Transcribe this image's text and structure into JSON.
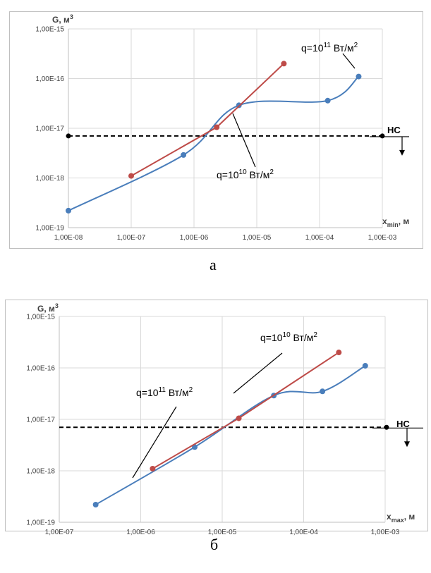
{
  "charts": [
    {
      "caption": "а",
      "chart_data": {
        "type": "scatter",
        "scale": {
          "x": "log",
          "y": "log"
        },
        "xlim": [
          1e-08,
          0.001
        ],
        "ylim": [
          1e-19,
          1e-15
        ],
        "grid": true,
        "xlabel": {
          "main": "x",
          "sub": "min",
          "rest": ", м"
        },
        "ylabel": {
          "main": "G, м",
          "sup": "3"
        },
        "xticks": [
          "1,00E-08",
          "1,00E-07",
          "1,00E-06",
          "1,00E-05",
          "1,00E-04",
          "1,00E-03"
        ],
        "yticks": [
          "1,00E-19",
          "1,00E-18",
          "1,00E-17",
          "1,00E-16",
          "1,00E-15"
        ],
        "series": [
          {
            "color": "#4a7ebb",
            "smooth": true,
            "points": [
              [
                1e-08,
                2.2e-19
              ],
              [
                6.8e-07,
                2.9e-18
              ],
              [
                5.2e-06,
                2.9e-17
              ],
              [
                0.000135,
                3.6e-17
              ],
              [
                0.00042,
                1.1e-16
              ]
            ]
          },
          {
            "color": "#be4b48",
            "smooth": false,
            "points": [
              [
                1e-07,
                1.1e-18
              ],
              [
                2.3e-06,
                1.05e-17
              ],
              [
                2.7e-05,
                2e-16
              ]
            ]
          }
        ],
        "threshold": {
          "y": 7e-18,
          "label": "НС",
          "color": "#000000"
        },
        "annotations": [
          {
            "prefix": "q=10",
            "exp": "11",
            "suffix": " Вт/м",
            "sup2": "2"
          },
          {
            "prefix": "q=10",
            "exp": "10",
            "suffix": " Вт/м",
            "sup2": "2"
          }
        ]
      }
    },
    {
      "caption": "б",
      "chart_data": {
        "type": "scatter",
        "scale": {
          "x": "log",
          "y": "log"
        },
        "xlim": [
          1e-07,
          0.001
        ],
        "ylim": [
          1e-19,
          1e-15
        ],
        "grid": true,
        "xlabel": {
          "main": "x",
          "sub": "max",
          "rest": ", м"
        },
        "ylabel": {
          "main": "G, м",
          "sup": "3"
        },
        "xticks": [
          "1,00E-07",
          "1,00E-06",
          "1,00E-05",
          "1,00E-04",
          "1,00E-03"
        ],
        "yticks": [
          "1,00E-19",
          "1,00E-18",
          "1,00E-17",
          "1,00E-16",
          "1,00E-15"
        ],
        "series": [
          {
            "color": "#4a7ebb",
            "smooth": true,
            "points": [
              [
                2.8e-07,
                2.2e-19
              ],
              [
                4.6e-06,
                2.9e-18
              ],
              [
                4.3e-05,
                2.9e-17
              ],
              [
                0.00017,
                3.5e-17
              ],
              [
                0.00057,
                1.1e-16
              ]
            ]
          },
          {
            "color": "#be4b48",
            "smooth": false,
            "points": [
              [
                1.4e-06,
                1.1e-18
              ],
              [
                1.6e-05,
                1.05e-17
              ],
              [
                0.00027,
                2e-16
              ]
            ]
          }
        ],
        "threshold": {
          "y": 7e-18,
          "label": "НС",
          "color": "#000000"
        },
        "annotations": [
          {
            "prefix": "q=10",
            "exp": "10",
            "suffix": " Вт/м",
            "sup2": "2"
          },
          {
            "prefix": "q=10",
            "exp": "11",
            "suffix": " Вт/м",
            "sup2": "2"
          }
        ]
      }
    }
  ]
}
